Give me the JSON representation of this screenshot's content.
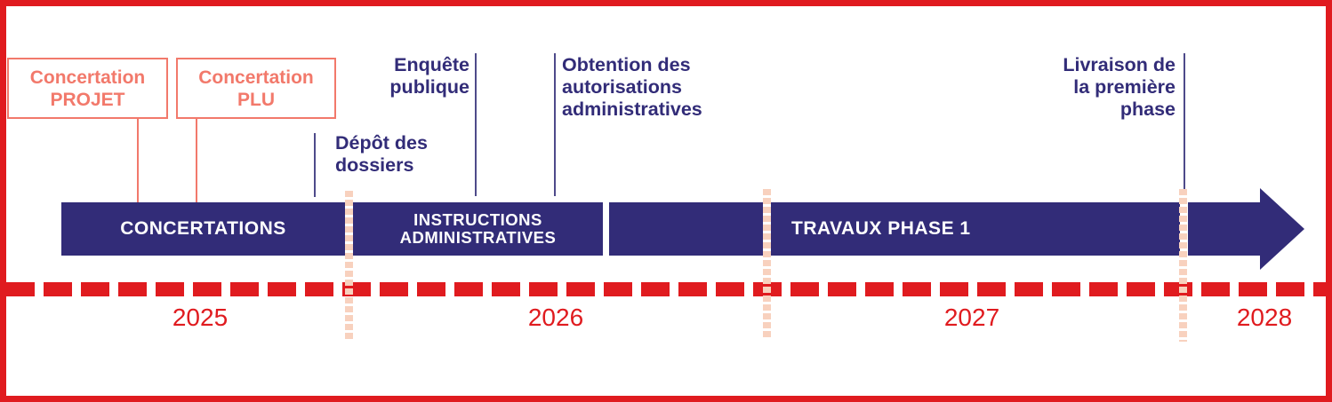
{
  "palette": {
    "navy": "#322c78",
    "red": "#e01b1f",
    "salmon": "#f2796b",
    "salmon_light": "#f8d1be"
  },
  "callouts": [
    {
      "lines": [
        "Concertation",
        "PROJET"
      ]
    },
    {
      "lines": [
        "Concertation",
        "PLU"
      ]
    }
  ],
  "milestones": {
    "depot": {
      "lines": [
        "Dépôt des",
        "dossiers"
      ]
    },
    "enquete": {
      "lines": [
        "Enquête",
        "publique"
      ]
    },
    "obtention": {
      "lines": [
        "Obtention des",
        "autorisations",
        "administratives"
      ]
    },
    "livraison": {
      "lines": [
        "Livraison de",
        "la première",
        "phase"
      ]
    }
  },
  "bar": {
    "phases": [
      {
        "label": "CONCERTATIONS"
      },
      {
        "lines": [
          "INSTRUCTIONS",
          "ADMINISTRATIVES"
        ]
      },
      {
        "label": ""
      },
      {
        "label": "TRAVAUX PHASE 1"
      }
    ]
  },
  "axis": {
    "years": [
      "2025",
      "2026",
      "2027",
      "2028"
    ]
  }
}
